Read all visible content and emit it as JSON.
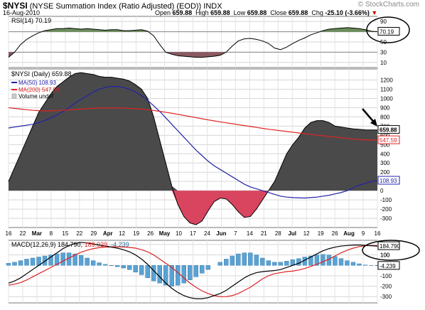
{
  "header": {
    "symbol": "$NYSI",
    "name": "(NYSE Summation Index (Ratio Adjusted) (EOD))",
    "exchange": "INDX",
    "date": "16-Aug-2010",
    "open_label": "Open",
    "open": "659.88",
    "high_label": "High",
    "high": "659.88",
    "low_label": "Low",
    "low": "659.88",
    "close_label": "Close",
    "close": "659.88",
    "chg_label": "Chg",
    "chg": "-25.10 (-3.66%)",
    "chg_arrow": "▼",
    "watermark": "© StockCharts.com"
  },
  "colors": {
    "area_above": "#4a4a4a",
    "area_below": "#d9455f",
    "ma50": "#2222aa",
    "ma200": "#dd2222",
    "macd": "#000000",
    "signal": "#dd2222",
    "histogram": "#5aa2d4",
    "rsi_high": "#6b8e5a",
    "rsi_low": "#8a5a60",
    "annotation": "#000000"
  },
  "chart_data": [
    {
      "type": "line",
      "title": "RSI(14) 70.19",
      "label": "RSI(14)",
      "value": "70.19",
      "yticks": [
        90,
        70,
        50,
        30,
        10
      ],
      "ylim": [
        0,
        100
      ],
      "overbought": 70,
      "oversold": 30,
      "x": [
        0,
        2,
        4,
        6,
        8,
        10,
        12,
        14,
        16,
        18,
        20,
        22,
        24,
        26,
        28,
        30,
        32,
        34,
        36,
        38,
        40,
        42,
        44,
        46,
        48,
        50,
        52,
        54,
        56,
        58,
        60,
        62,
        64,
        66,
        68,
        70,
        72,
        74,
        76,
        78,
        80,
        82,
        84,
        86,
        88,
        90,
        92,
        94,
        96,
        98,
        100,
        102,
        104,
        106,
        108,
        110,
        112,
        114,
        116,
        118,
        120,
        122
      ],
      "values": [
        20,
        30,
        45,
        55,
        62,
        68,
        72,
        74,
        76,
        76,
        77,
        76,
        75,
        76,
        75,
        74,
        73,
        74,
        74,
        72,
        72,
        73,
        74,
        71,
        62,
        45,
        30,
        26,
        23,
        22,
        21,
        20,
        20,
        21,
        22,
        24,
        30,
        42,
        52,
        56,
        57,
        55,
        52,
        47,
        38,
        35,
        40,
        47,
        53,
        58,
        64,
        68,
        72,
        75,
        76,
        77,
        78,
        77,
        76,
        74,
        71,
        70
      ]
    },
    {
      "type": "area",
      "title": "$NYSI (Daily) 659.88",
      "series": [
        {
          "name": "$NYSI (Daily) 659.88",
          "values": [
            100,
            250,
            400,
            550,
            700,
            850,
            950,
            1050,
            1130,
            1180,
            1230,
            1270,
            1280,
            1270,
            1260,
            1240,
            1230,
            1230,
            1220,
            1210,
            1190,
            1150,
            1100,
            1000,
            800,
            550,
            300,
            50,
            -150,
            -280,
            -350,
            -370,
            -330,
            -220,
            -120,
            -80,
            -90,
            -150,
            -230,
            -290,
            -280,
            -200,
            -100,
            0,
            100,
            250,
            400,
            500,
            580,
            680,
            740,
            760,
            760,
            740,
            700,
            690,
            680,
            670,
            665,
            660,
            659,
            659
          ]
        },
        {
          "name": "MA(50) 108.93",
          "values": [
            680,
            690,
            700,
            710,
            720,
            740,
            760,
            790,
            820,
            860,
            900,
            950,
            990,
            1030,
            1070,
            1100,
            1120,
            1130,
            1130,
            1120,
            1100,
            1070,
            1030,
            980,
            920,
            860,
            790,
            720,
            650,
            580,
            510,
            440,
            380,
            320,
            270,
            230,
            190,
            150,
            110,
            70,
            40,
            20,
            0,
            -20,
            -40,
            -60,
            -70,
            -75,
            -78,
            -80,
            -75,
            -70,
            -60,
            -50,
            -35,
            -20,
            0,
            30,
            60,
            80,
            100,
            108.93
          ]
        },
        {
          "name": "MA(200) 547.59",
          "values": [
            900,
            892,
            885,
            878,
            872,
            868,
            866,
            866,
            868,
            872,
            876,
            880,
            885,
            890,
            893,
            896,
            898,
            898,
            897,
            895,
            892,
            888,
            884,
            878,
            870,
            860,
            850,
            840,
            828,
            816,
            804,
            792,
            780,
            768,
            757,
            746,
            736,
            726,
            716,
            706,
            696,
            686,
            676,
            666,
            658,
            650,
            642,
            634,
            626,
            618,
            610,
            602,
            595,
            588,
            581,
            574,
            567,
            560,
            555,
            551,
            548,
            547.59
          ]
        },
        {
          "name": "Volume undef",
          "values": []
        }
      ],
      "yticks": [
        1200,
        1100,
        1000,
        900,
        800,
        700,
        600,
        500,
        400,
        300,
        200,
        100,
        0,
        -100,
        -200,
        -300
      ],
      "ylim": [
        -400,
        1320
      ],
      "price_labels": [
        "659.88",
        "547.59",
        "108.93"
      ]
    },
    {
      "type": "line",
      "title": "MACD(12,26,9) 184.790, 189.029, -4.239",
      "label": "MACD(12,26,9)",
      "series": [
        {
          "name": "184.790",
          "values": [
            -170,
            -150,
            -120,
            -80,
            -40,
            0,
            40,
            80,
            120,
            160,
            190,
            210,
            220,
            215,
            205,
            195,
            185,
            175,
            165,
            150,
            130,
            100,
            60,
            10,
            -50,
            -110,
            -170,
            -220,
            -260,
            -290,
            -310,
            -320,
            -320,
            -310,
            -290,
            -270,
            -240,
            -200,
            -160,
            -120,
            -90,
            -70,
            -60,
            -55,
            -50,
            -40,
            -20,
            0,
            20,
            50,
            80,
            110,
            140,
            160,
            175,
            185,
            190,
            195,
            195,
            192,
            188,
            184.79
          ]
        },
        {
          "name": "189.029",
          "values": [
            -190,
            -180,
            -165,
            -140,
            -110,
            -80,
            -50,
            -20,
            10,
            40,
            70,
            100,
            125,
            145,
            160,
            170,
            175,
            178,
            178,
            176,
            172,
            165,
            150,
            130,
            100,
            60,
            20,
            -20,
            -70,
            -120,
            -170,
            -210,
            -245,
            -270,
            -290,
            -300,
            -300,
            -290,
            -270,
            -240,
            -210,
            -170,
            -130,
            -100,
            -80,
            -70,
            -60,
            -55,
            -45,
            -30,
            -10,
            10,
            35,
            60,
            90,
            120,
            145,
            165,
            180,
            188,
            190,
            189.029
          ]
        },
        {
          "name": "-4.239",
          "values": [
            20,
            30,
            45,
            60,
            70,
            80,
            90,
            100,
            110,
            120,
            120,
            110,
            95,
            70,
            45,
            25,
            10,
            -3,
            -13,
            -26,
            -42,
            -65,
            -90,
            -120,
            -150,
            -170,
            -190,
            -200,
            -190,
            -170,
            -140,
            -110,
            -75,
            -40,
            0,
            30,
            60,
            90,
            110,
            120,
            120,
            100,
            70,
            45,
            30,
            30,
            40,
            55,
            65,
            80,
            90,
            100,
            105,
            100,
            85,
            65,
            45,
            30,
            15,
            4,
            -2,
            -4.239
          ]
        }
      ],
      "yticks": [
        200,
        100,
        -100,
        -200,
        -300
      ],
      "ylim": [
        -360,
        240
      ],
      "price_labels": [
        "184.790",
        "100",
        "-4.239"
      ]
    }
  ],
  "x_axis": {
    "labels": [
      "16",
      "22",
      "Mar",
      "8",
      "15",
      "22",
      "29",
      "Apr",
      "12",
      "19",
      "26",
      "May",
      "10",
      "17",
      "24",
      "Jun",
      "7",
      "14",
      "21",
      "28",
      "Jul",
      "12",
      "19",
      "26",
      "Aug",
      "9",
      "16"
    ],
    "bold": [
      "Mar",
      "Apr",
      "May",
      "Jun",
      "Jul",
      "Aug"
    ]
  },
  "panel_labels": {
    "rsi": "RSI(14) 70.19",
    "price_main": "$NYSI (Daily) 659.88",
    "ma50": "MA(50) 108.93",
    "ma200": "MA(200) 547.59",
    "volume": "Volume undef",
    "macd_prefix": "MACD(12,26,9)",
    "macd_value": "184.790",
    "signal_value": "189.029",
    "hist_value": "-4.239"
  }
}
